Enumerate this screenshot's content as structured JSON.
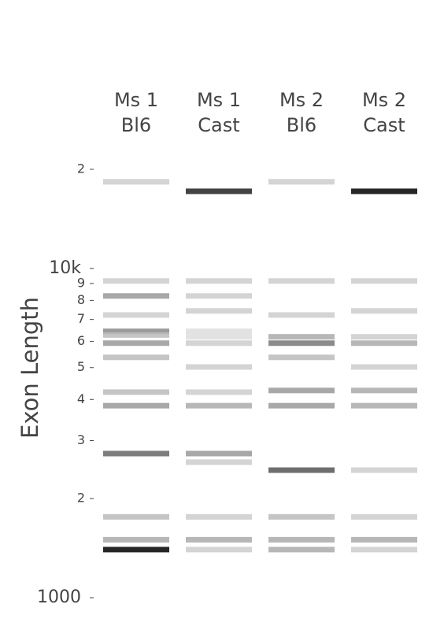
{
  "chart_data": {
    "type": "gel",
    "y_label": "Exon Length",
    "log_y": true,
    "ylim": [
      1000,
      20000
    ],
    "yticks": [
      1000,
      {
        "value": 2000,
        "label": "2"
      },
      {
        "value": 3000,
        "label": "3"
      },
      {
        "value": 4000,
        "label": "4"
      },
      {
        "value": 5000,
        "label": "5"
      },
      {
        "value": 6000,
        "label": "6"
      },
      {
        "value": 7000,
        "label": "7"
      },
      {
        "value": 8000,
        "label": "8"
      },
      {
        "value": 9000,
        "label": "9"
      },
      {
        "value": 10000,
        "label": "10k"
      },
      {
        "value": 20000,
        "label": "2"
      }
    ],
    "series": [
      {
        "label": [
          "Ms 1",
          "Bl6"
        ],
        "values": [
          18330,
          9160,
          8250,
          7220,
          6440,
          6280,
          5930,
          5370,
          4210,
          3830,
          2740,
          1760,
          1500,
          1400
        ],
        "colors": [
          "#cccccc",
          "#cccccc",
          "#999999",
          "#cccccc",
          "#888888",
          "#bbbbbb",
          "#999999",
          "#bbbbbb",
          "#bbbbbb",
          "#999999",
          "#666666",
          "#bbbbbb",
          "#aaaaaa",
          "#000000"
        ]
      },
      {
        "label": [
          "Ms 1",
          "Cast"
        ],
        "values": [
          17150,
          9160,
          8250,
          7430,
          6440,
          6200,
          5930,
          5020,
          4210,
          3830,
          2740,
          2580,
          1760,
          1500,
          1400
        ],
        "colors": [
          "#222222",
          "#cccccc",
          "#cccccc",
          "#cccccc",
          "#dddddd",
          "#dddddd",
          "#cccccc",
          "#cccccc",
          "#cccccc",
          "#aaaaaa",
          "#999999",
          "#cccccc",
          "#cccccc",
          "#aaaaaa",
          "#cccccc"
        ]
      },
      {
        "label": [
          "Ms 2",
          "Bl6"
        ],
        "values": [
          18330,
          9160,
          7220,
          6200,
          5930,
          5370,
          4260,
          3830,
          2440,
          1760,
          1500,
          1400
        ],
        "colors": [
          "#cccccc",
          "#cccccc",
          "#cccccc",
          "#aaaaaa",
          "#777777",
          "#bbbbbb",
          "#999999",
          "#999999",
          "#555555",
          "#bbbbbb",
          "#aaaaaa",
          "#aaaaaa"
        ]
      },
      {
        "label": [
          "Ms 2",
          "Cast"
        ],
        "values": [
          17150,
          9160,
          7430,
          6200,
          5930,
          5020,
          4260,
          3830,
          2440,
          1760,
          1500,
          1400
        ],
        "colors": [
          "#000000",
          "#cccccc",
          "#cccccc",
          "#cccccc",
          "#aaaaaa",
          "#cccccc",
          "#aaaaaa",
          "#aaaaaa",
          "#cccccc",
          "#cccccc",
          "#aaaaaa",
          "#cccccc"
        ]
      }
    ]
  }
}
